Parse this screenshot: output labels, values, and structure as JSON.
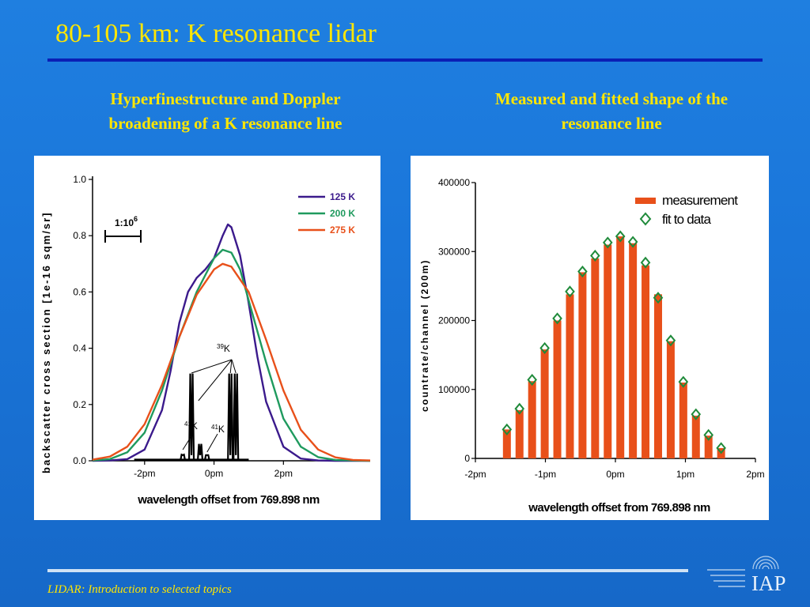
{
  "slide": {
    "title": "80-105 km: K resonance lidar",
    "left_subtitle": [
      "Hyperfinestructure and Doppler",
      "broadening of a K resonance line"
    ],
    "right_subtitle": [
      "Measured and fitted shape of the",
      "resonance line"
    ],
    "footer": "LIDAR: Introduction to selected topics",
    "logo_text": "IAP"
  },
  "colors": {
    "background": "#1a76da",
    "title": "#ffe600",
    "curve_125K": "#3b1a8c",
    "curve_200K": "#1f9a5e",
    "curve_275K": "#e8501a",
    "bar": "#e8501a",
    "fit": "#1f8a3a"
  },
  "chart_data": [
    {
      "type": "line",
      "xlabel": "wavelength offset from 769.898 nm",
      "ylabel": "backscatter cross section [1e-16 sqm/sr]",
      "xlim": [
        -3.5,
        4.5
      ],
      "ylim": [
        0,
        1.0
      ],
      "x_ticks": [
        "-2pm",
        "0pm",
        "2pm"
      ],
      "x_tick_values": [
        -2,
        0,
        2
      ],
      "y_ticks": [
        "0.0",
        "0.2",
        "0.4",
        "0.6",
        "0.8",
        "1.0"
      ],
      "y_tick_values": [
        0,
        0.2,
        0.4,
        0.6,
        0.8,
        1.0
      ],
      "scale_bar_label": "1:10",
      "scale_bar_exponent": "6",
      "series": [
        {
          "name": "125 K",
          "color": "#3b1a8c",
          "x": [
            -3.5,
            -3,
            -2.5,
            -2,
            -1.5,
            -1.25,
            -1,
            -0.75,
            -0.5,
            -0.25,
            0,
            0.25,
            0.4,
            0.5,
            0.75,
            1,
            1.25,
            1.5,
            2,
            2.5,
            3,
            3.5,
            4,
            4.5
          ],
          "y": [
            0,
            0.001,
            0.006,
            0.04,
            0.18,
            0.32,
            0.49,
            0.6,
            0.65,
            0.68,
            0.72,
            0.8,
            0.84,
            0.83,
            0.73,
            0.56,
            0.37,
            0.21,
            0.05,
            0.008,
            0.001,
            0,
            0,
            0
          ]
        },
        {
          "name": "200 K",
          "color": "#1f9a5e",
          "x": [
            -3.5,
            -3,
            -2.5,
            -2,
            -1.5,
            -1,
            -0.5,
            -0.25,
            0,
            0.25,
            0.5,
            0.75,
            1,
            1.5,
            2,
            2.5,
            3,
            3.5,
            4,
            4.5
          ],
          "y": [
            0.001,
            0.006,
            0.03,
            0.1,
            0.25,
            0.44,
            0.6,
            0.66,
            0.72,
            0.75,
            0.74,
            0.68,
            0.57,
            0.35,
            0.15,
            0.05,
            0.013,
            0.003,
            0.001,
            0
          ]
        },
        {
          "name": "275 K",
          "color": "#e8501a",
          "x": [
            -3.5,
            -3,
            -2.5,
            -2,
            -1.5,
            -1,
            -0.5,
            0,
            0.25,
            0.5,
            1,
            1.5,
            2,
            2.5,
            3,
            3.5,
            4,
            4.5
          ],
          "y": [
            0.004,
            0.015,
            0.05,
            0.13,
            0.27,
            0.44,
            0.59,
            0.68,
            0.7,
            0.69,
            0.6,
            0.43,
            0.25,
            0.11,
            0.04,
            0.012,
            0.003,
            0.001
          ]
        }
      ],
      "hyperfine_lines": [
        {
          "x": -0.65,
          "y": 0.31
        },
        {
          "x": 0.47,
          "y": 0.31
        },
        {
          "x": 0.63,
          "y": 0.31
        },
        {
          "x": -0.9,
          "y": 0.022
        },
        {
          "x": -0.4,
          "y": 0.06
        },
        {
          "x": -0.2,
          "y": 0.02
        }
      ],
      "annotations": [
        {
          "mass": "39",
          "label": "K"
        },
        {
          "mass": "41",
          "label": "K"
        },
        {
          "mass": "41",
          "label": "K"
        }
      ]
    },
    {
      "type": "bar",
      "xlabel": "wavelength offset from 769.898 nm",
      "ylabel": "countrate/channel (200m)",
      "xlim": [
        -2,
        2
      ],
      "ylim": [
        0,
        400000
      ],
      "x_ticks": [
        "-2pm",
        "-1pm",
        "0pm",
        "1pm",
        "2pm"
      ],
      "x_tick_values": [
        -2,
        -1,
        0,
        1,
        2
      ],
      "y_ticks": [
        "0",
        "100000",
        "200000",
        "300000",
        "400000"
      ],
      "y_tick_values": [
        0,
        100000,
        200000,
        300000,
        400000
      ],
      "x": [
        -1.55,
        -1.37,
        -1.19,
        -1.01,
        -0.83,
        -0.65,
        -0.47,
        -0.29,
        -0.11,
        0.07,
        0.25,
        0.43,
        0.61,
        0.79,
        0.97,
        1.15,
        1.33,
        1.51
      ],
      "series": [
        {
          "name": "measurement",
          "color": "#e8501a",
          "values": [
            42000,
            70000,
            112000,
            158000,
            200000,
            238000,
            270000,
            290000,
            310000,
            322000,
            312000,
            280000,
            238000,
            170000,
            110000,
            62000,
            33000,
            15000
          ]
        },
        {
          "name": "fit to data",
          "color": "#1f8a3a",
          "values": [
            42000,
            72000,
            114000,
            160000,
            203000,
            242000,
            271000,
            294000,
            313000,
            322000,
            314000,
            284000,
            233000,
            171000,
            111000,
            64000,
            34000,
            15000
          ]
        }
      ],
      "legend_position": "top-right"
    }
  ]
}
